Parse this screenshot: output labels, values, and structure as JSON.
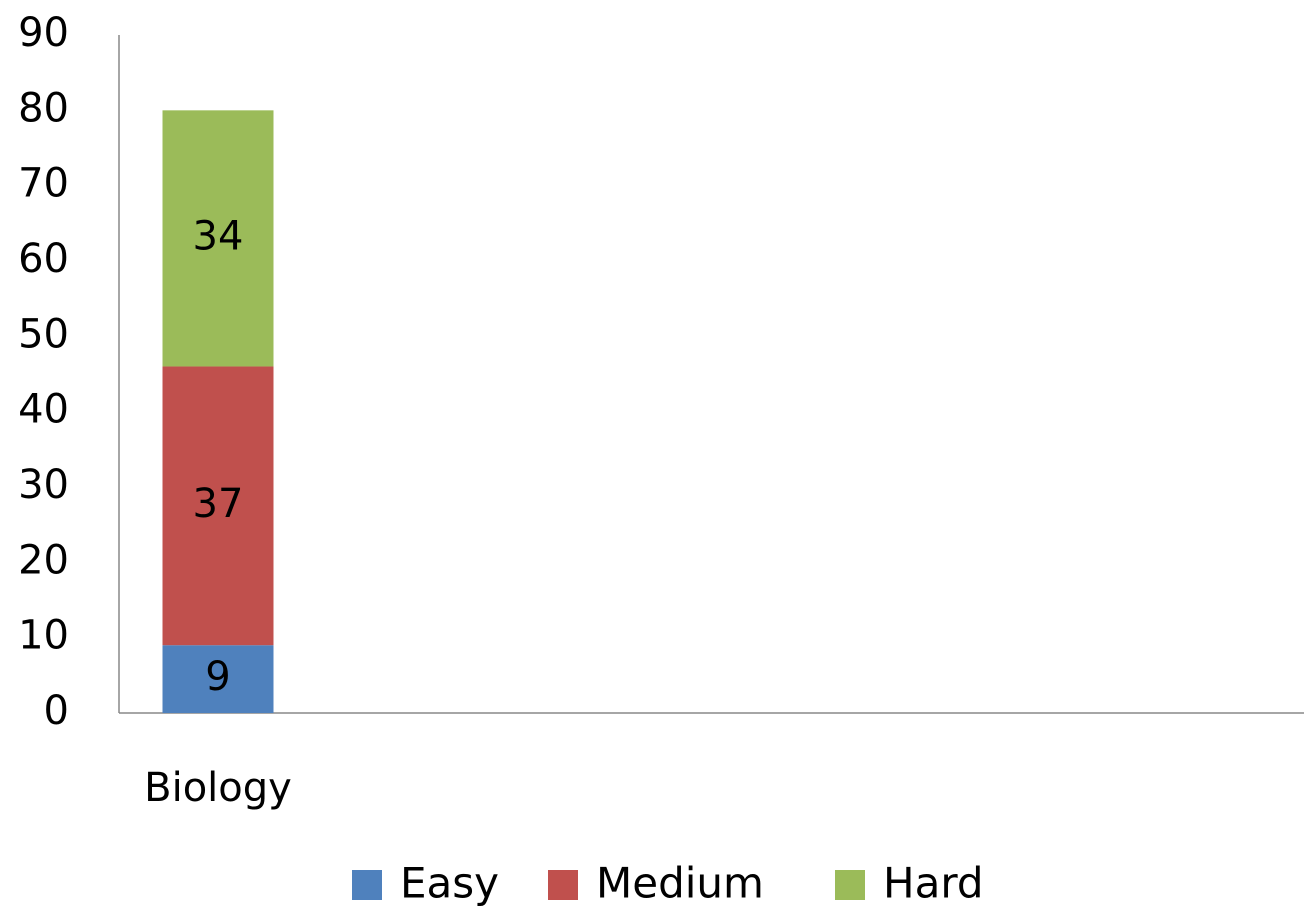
{
  "chart_data": {
    "type": "stacked_bar",
    "categories": [
      "Biology"
    ],
    "series": [
      {
        "name": "Easy",
        "color": "#4f81bd",
        "values": [
          9
        ]
      },
      {
        "name": "Medium",
        "color": "#c0504d",
        "values": [
          37
        ]
      },
      {
        "name": "Hard",
        "color": "#9bbb59",
        "values": [
          34
        ]
      }
    ],
    "ylim": [
      0,
      90
    ],
    "yticks": [
      0,
      10,
      20,
      30,
      40,
      50,
      60,
      70,
      80,
      90
    ],
    "grid": false,
    "legend": "bottom"
  }
}
